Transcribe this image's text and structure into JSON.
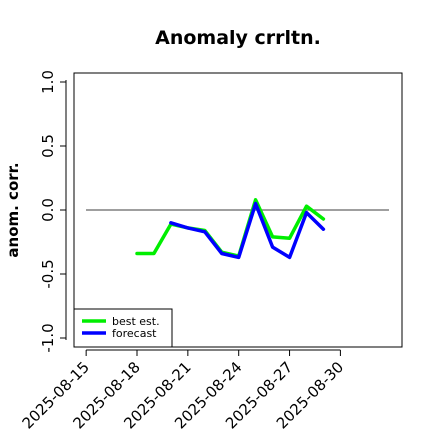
{
  "chart_data": {
    "type": "line",
    "title": "Anomaly crrltn.",
    "ylabel": "anom. corr.",
    "xlabel": "",
    "ylim": [
      -1.0,
      1.0
    ],
    "yticks": [
      -1.0,
      -0.5,
      0.0,
      0.5,
      1.0
    ],
    "ytick_labels": [
      "-1.0",
      "-0.5",
      "0.0",
      "0.5",
      "1.0"
    ],
    "reference_line": 0.0,
    "x": [
      "2025-08-14",
      "2025-08-15",
      "2025-08-16",
      "2025-08-17",
      "2025-08-18",
      "2025-08-19",
      "2025-08-20",
      "2025-08-21",
      "2025-08-22",
      "2025-08-23",
      "2025-08-24",
      "2025-08-25",
      "2025-08-26",
      "2025-08-27",
      "2025-08-28",
      "2025-08-29",
      "2025-08-30"
    ],
    "xtick_labels": [
      "2025-08-15",
      "2025-08-18",
      "2025-08-21",
      "2025-08-24",
      "2025-08-27",
      "2025-08-30"
    ],
    "highlighted_tick": "2025-08-21",
    "highlight_color": "#228B22",
    "legend_position": "bottom-left",
    "series": [
      {
        "name": "best est.",
        "color": "#00ee00",
        "values": [
          null,
          null,
          null,
          null,
          -0.34,
          -0.34,
          -0.11,
          -0.14,
          -0.16,
          -0.33,
          -0.36,
          0.08,
          -0.21,
          -0.22,
          0.03,
          -0.07,
          null
        ]
      },
      {
        "name": "forecast",
        "color": "#0000ff",
        "values": [
          null,
          null,
          null,
          null,
          null,
          null,
          -0.1,
          -0.14,
          -0.17,
          -0.34,
          -0.37,
          0.05,
          -0.29,
          -0.37,
          -0.02,
          -0.15,
          null
        ]
      }
    ]
  }
}
